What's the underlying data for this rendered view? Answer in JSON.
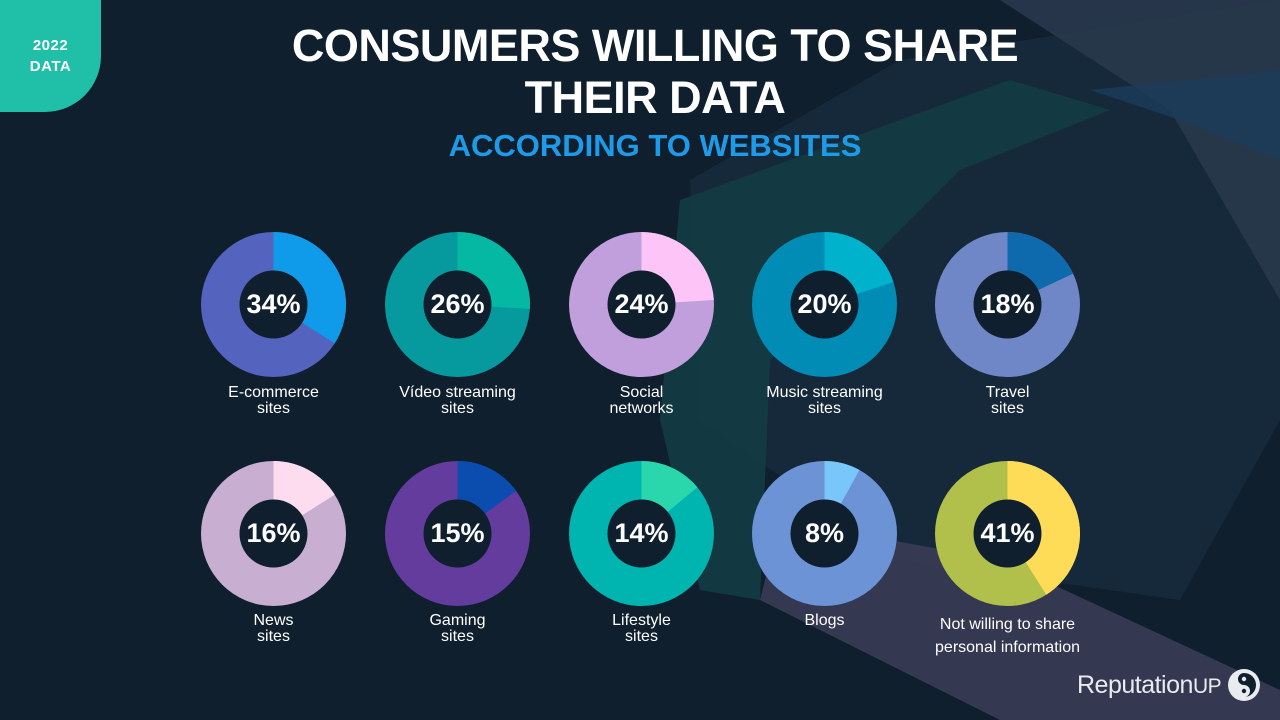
{
  "badge": {
    "line1": "2022",
    "line2": "DATA"
  },
  "title": {
    "line1": "CONSUMERS WILLING TO SHARE",
    "line2": "THEIR DATA"
  },
  "subtitle": "ACCORDING TO WEBSITES",
  "chart_data": {
    "type": "pie",
    "title": "CONSUMERS WILLING TO SHARE THEIR DATA",
    "subtitle": "ACCORDING TO WEBSITES",
    "unit": "%",
    "categories": [
      "E-commerce sites",
      "Vídeo streaming sites",
      "Social networks",
      "Music streaming sites",
      "Travel sites",
      "News sites",
      "Gaming sites",
      "Lifestyle sites",
      "Blogs",
      "Not willing to share personal information"
    ],
    "values": [
      34,
      26,
      24,
      20,
      18,
      16,
      15,
      14,
      8,
      41
    ],
    "items": [
      {
        "value": 34,
        "display": "34%",
        "label_lines": [
          "E-commerce",
          "sites"
        ],
        "colors": {
          "highlight": "#0f9be9",
          "rest": "#5463be"
        }
      },
      {
        "value": 26,
        "display": "26%",
        "label_lines": [
          "Vídeo streaming",
          "sites"
        ],
        "colors": {
          "highlight": "#05b8a4",
          "rest": "#069a9e"
        }
      },
      {
        "value": 24,
        "display": "24%",
        "label_lines": [
          "Social",
          "networks"
        ],
        "colors": {
          "highlight": "#fcc4f7",
          "rest": "#c19fdc"
        }
      },
      {
        "value": 20,
        "display": "20%",
        "label_lines": [
          "Music streaming",
          "sites"
        ],
        "colors": {
          "highlight": "#00b2cb",
          "rest": "#008cb4"
        }
      },
      {
        "value": 18,
        "display": "18%",
        "label_lines": [
          "Travel",
          "sites"
        ],
        "colors": {
          "highlight": "#0e6aad",
          "rest": "#6f87c6"
        }
      },
      {
        "value": 16,
        "display": "16%",
        "label_lines": [
          "News",
          "sites"
        ],
        "colors": {
          "highlight": "#fddcef",
          "rest": "#c8aed0"
        }
      },
      {
        "value": 15,
        "display": "15%",
        "label_lines": [
          "Gaming",
          "sites"
        ],
        "colors": {
          "highlight": "#0b4dae",
          "rest": "#643c9e"
        }
      },
      {
        "value": 14,
        "display": "14%",
        "label_lines": [
          "Lifestyle",
          "sites"
        ],
        "colors": {
          "highlight": "#2ad7ad",
          "rest": "#00b5b0"
        }
      },
      {
        "value": 8,
        "display": "8%",
        "label_lines": [
          "Blogs"
        ],
        "colors": {
          "highlight": "#79c6fb",
          "rest": "#6b93d6"
        }
      },
      {
        "value": 41,
        "display": "41%",
        "label_lines": [
          "Not willing to share",
          "personal information"
        ],
        "colors": {
          "highlight": "#fedc58",
          "rest": "#b1c04b"
        }
      }
    ]
  },
  "logo": {
    "text": "Reputation",
    "suffix": "UP"
  },
  "colors": {
    "background": "#0f1f2e",
    "badge": "#1fbfa8",
    "subtitle": "#1e9be8",
    "donut_hole": "#0f1f2e"
  }
}
